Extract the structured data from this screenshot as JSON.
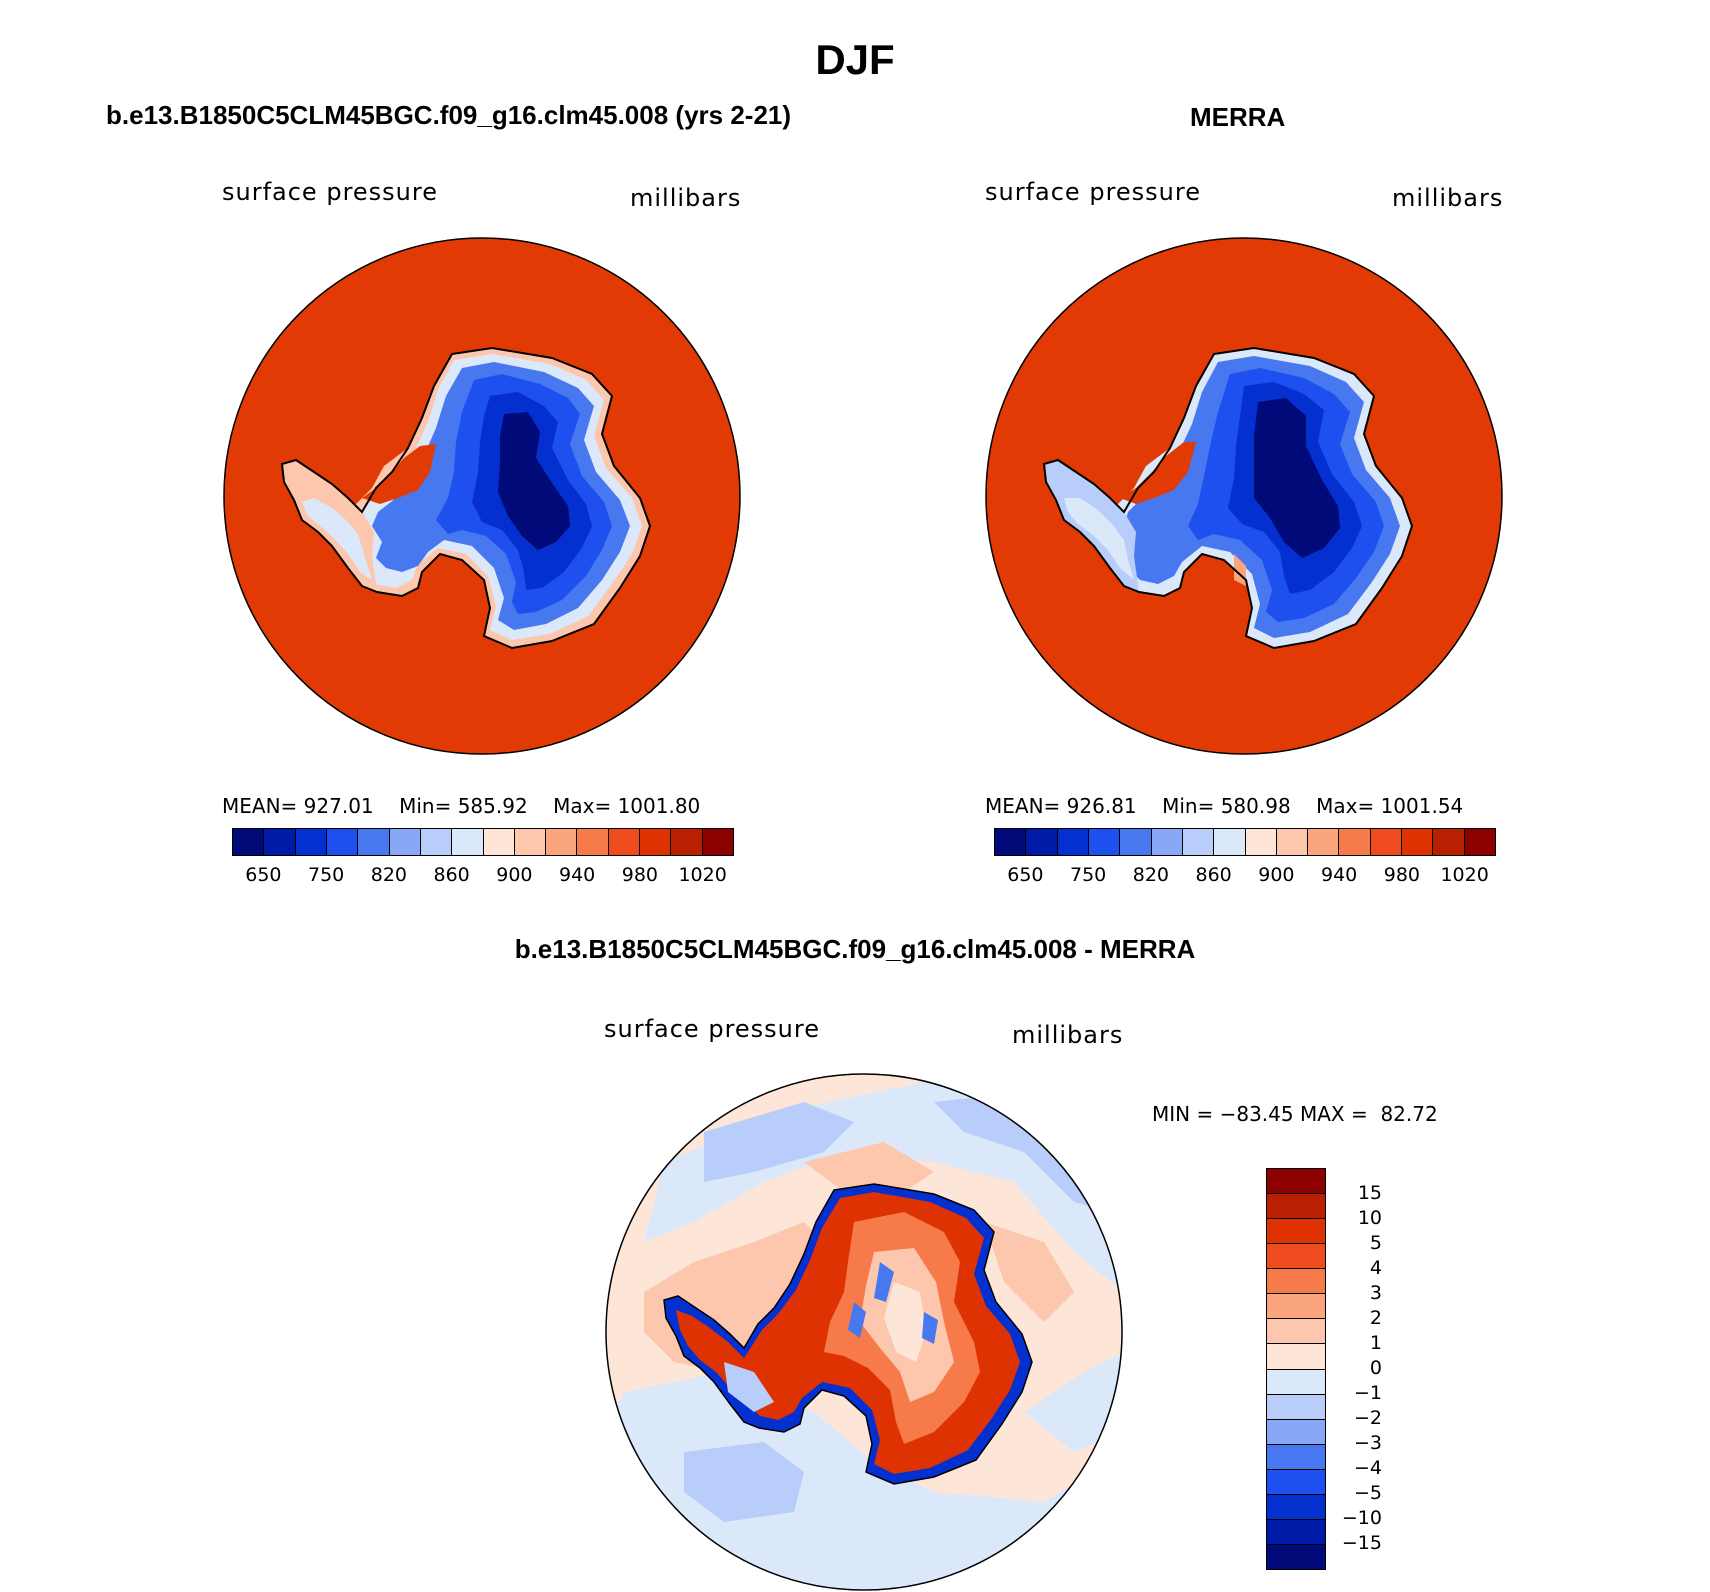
{
  "title": "DJF",
  "panels": [
    {
      "title": "b.e13.B1850C5CLM45BGC.f09_g16.clm45.008 (yrs 2-21)",
      "left_label": "surface pressure",
      "right_label": "millibars",
      "stats": {
        "mean": "927.01",
        "min": "585.92",
        "max": "1001.80"
      }
    },
    {
      "title": "MERRA",
      "left_label": "surface pressure",
      "right_label": "millibars",
      "stats": {
        "mean": "926.81",
        "min": "580.98",
        "max": "1001.54"
      }
    },
    {
      "title": "b.e13.B1850C5CLM45BGC.f09_g16.clm45.008 - MERRA",
      "left_label": "surface pressure",
      "right_label": "millibars",
      "minmax": {
        "min": "−83.45",
        "max": "82.72"
      }
    }
  ],
  "labels": {
    "mean": "MEAN=",
    "min": "Min=",
    "max": "Max=",
    "MIN": "MIN =",
    "MAX": "MAX ="
  },
  "colorbar_abs": {
    "colors": [
      "#000a78",
      "#001aa8",
      "#0530d0",
      "#1e50f0",
      "#4878f0",
      "#88a8f5",
      "#b8cdfa",
      "#dbe8fa",
      "#fde6d7",
      "#fcc7ad",
      "#fba57f",
      "#f77a4b",
      "#ee4c1e",
      "#de3202",
      "#b82001",
      "#8c0000"
    ],
    "tick_labels": [
      "650",
      "750",
      "820",
      "860",
      "900",
      "940",
      "980",
      "1020"
    ]
  },
  "colorbar_diff": {
    "colors_top_to_bottom": [
      "#8c0000",
      "#b82001",
      "#de3202",
      "#ee4c1e",
      "#f77a4b",
      "#fba57f",
      "#fcc7ad",
      "#fde6d7",
      "#dbe8fa",
      "#b8cdfa",
      "#88a8f5",
      "#4878f0",
      "#1e50f0",
      "#0530d0",
      "#001aa8",
      "#000a78"
    ],
    "tick_labels": [
      "15",
      "10",
      "5",
      "4",
      "3",
      "2",
      "1",
      "0",
      "−1",
      "−2",
      "−3",
      "−4",
      "−5",
      "−10",
      "−15"
    ]
  },
  "map_colors": {
    "ocean_abs": "#e23a05",
    "ocean_diff_pos": "#fde6d7",
    "ocean_diff_neg": "#dbe8fa"
  }
}
